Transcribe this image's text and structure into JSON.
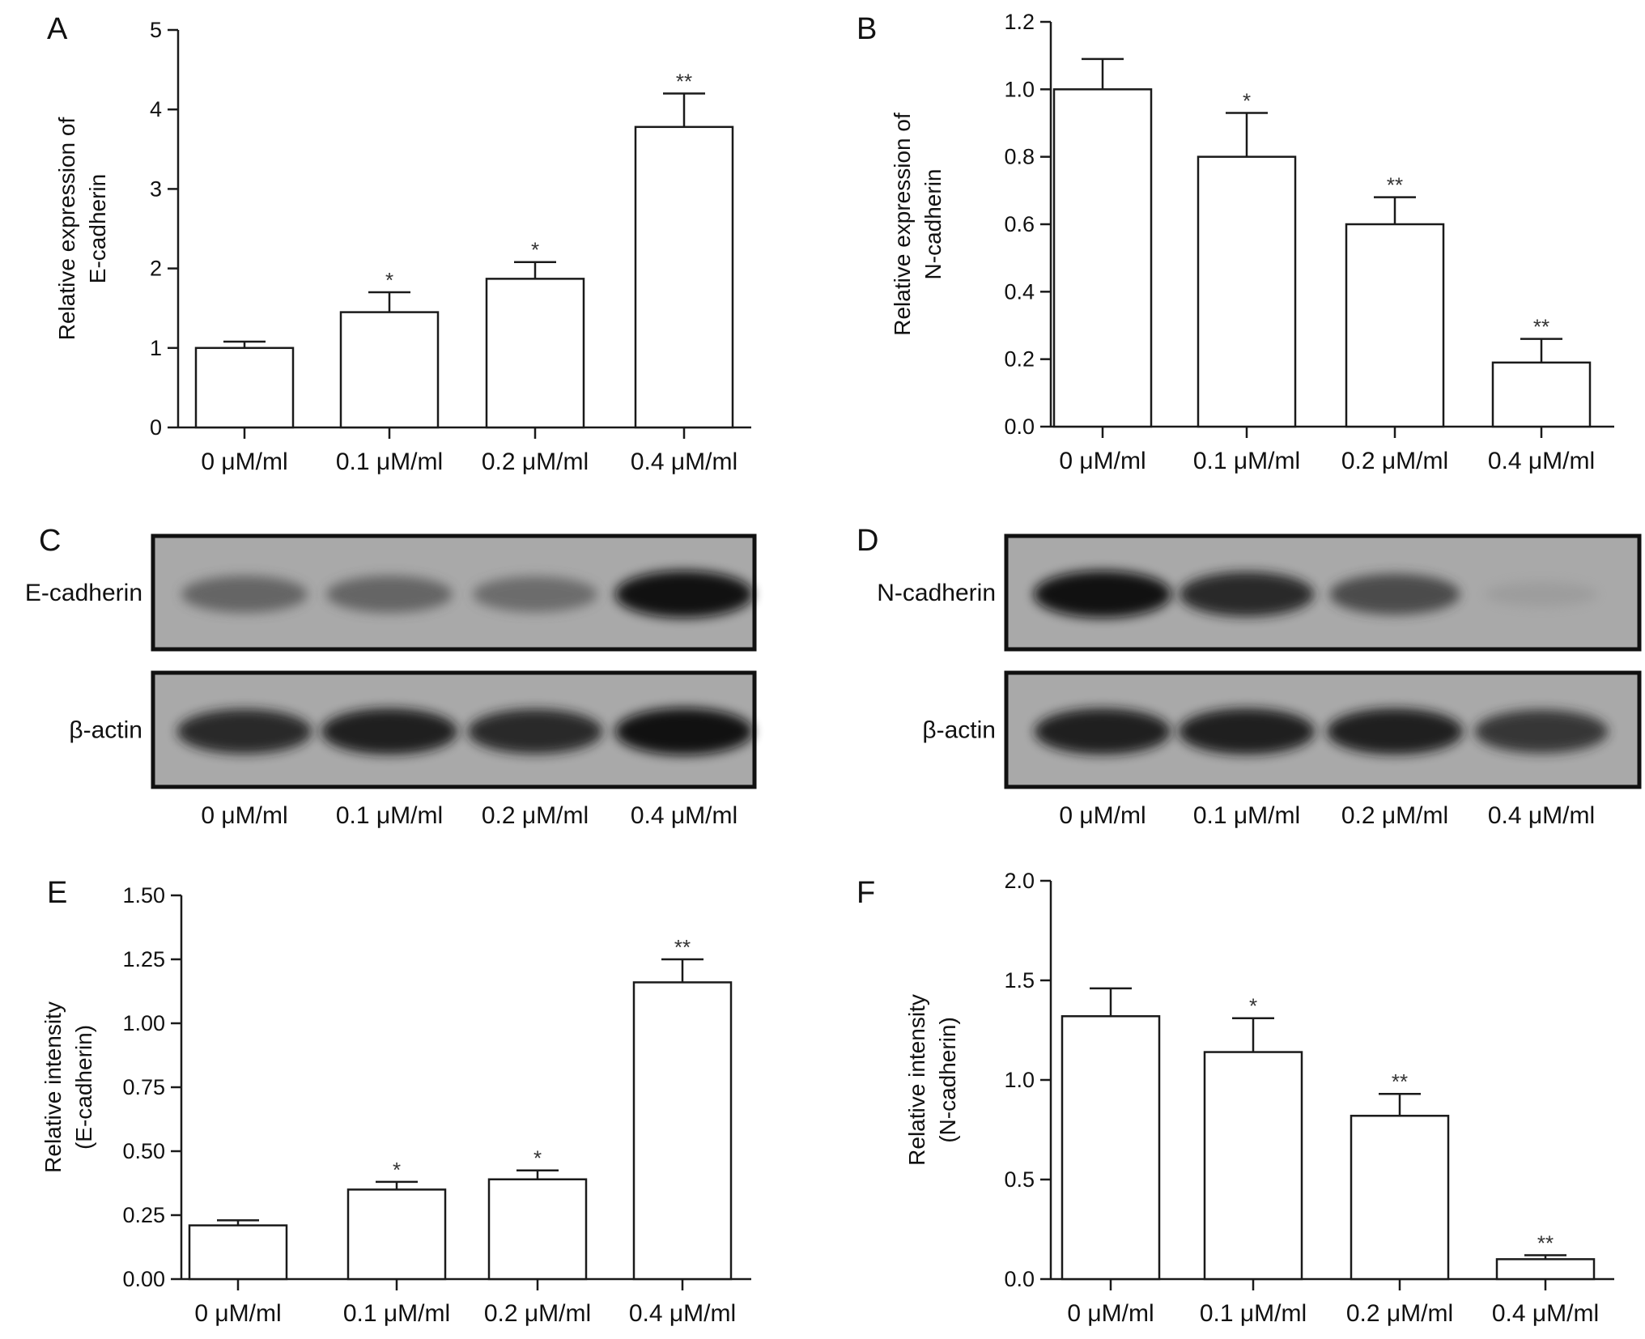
{
  "panels": [
    {
      "id": "A",
      "kind": "chart",
      "letter": "A",
      "chart_data": {
        "type": "bar",
        "categories": [
          "0 μM/ml",
          "0.1 μM/ml",
          "0.2 μM/ml",
          "0.4 μM/ml"
        ],
        "values": [
          1.0,
          1.45,
          1.87,
          3.78
        ],
        "errors": [
          0.08,
          0.25,
          0.21,
          0.42
        ],
        "significance": [
          "",
          "*",
          "*",
          "**"
        ],
        "ylabel": [
          "Relative expression of",
          "E-cadherin"
        ],
        "ylim": [
          0,
          5
        ],
        "yticks": [
          0,
          1,
          2,
          3,
          4,
          5
        ],
        "ytick_labels": [
          "0",
          "1",
          "2",
          "3",
          "4",
          "5"
        ],
        "grid": false
      }
    },
    {
      "id": "B",
      "kind": "chart",
      "letter": "B",
      "chart_data": {
        "type": "bar",
        "categories": [
          "0 μM/ml",
          "0.1 μM/ml",
          "0.2 μM/ml",
          "0.4 μM/ml"
        ],
        "values": [
          1.0,
          0.8,
          0.6,
          0.19
        ],
        "errors": [
          0.09,
          0.13,
          0.08,
          0.07
        ],
        "significance": [
          "",
          "*",
          "**",
          "**"
        ],
        "ylabel": [
          "Relative expression of",
          "N-cadherin"
        ],
        "ylim": [
          0,
          1.2
        ],
        "yticks": [
          0,
          0.2,
          0.4,
          0.6,
          0.8,
          1.0,
          1.2
        ],
        "ytick_labels": [
          "0.0",
          "0.2",
          "0.4",
          "0.6",
          "0.8",
          "1.0",
          "1.2"
        ],
        "grid": false
      }
    },
    {
      "id": "C",
      "kind": "blot",
      "letter": "C",
      "rows": [
        {
          "label": "E-cadherin",
          "band_intensity": [
            0.55,
            0.55,
            0.5,
            0.95
          ]
        },
        {
          "label": "β-actin",
          "band_intensity": [
            0.85,
            0.9,
            0.85,
            0.95
          ]
        }
      ],
      "lanes": [
        "0 μM/ml",
        "0.1 μM/ml",
        "0.2 μM/ml",
        "0.4 μM/ml"
      ]
    },
    {
      "id": "D",
      "kind": "blot",
      "letter": "D",
      "rows": [
        {
          "label": "N-cadherin",
          "band_intensity": [
            0.95,
            0.85,
            0.7,
            0.08
          ]
        },
        {
          "label": "β-actin",
          "band_intensity": [
            0.9,
            0.9,
            0.9,
            0.8
          ]
        }
      ],
      "lanes": [
        "0 μM/ml",
        "0.1 μM/ml",
        "0.2 μM/ml",
        "0.4 μM/ml"
      ]
    },
    {
      "id": "E",
      "kind": "chart",
      "letter": "E",
      "chart_data": {
        "type": "bar",
        "categories": [
          "0 μM/ml",
          "0.1 μM/ml",
          "0.2 μM/ml",
          "0.4 μM/ml"
        ],
        "values": [
          0.21,
          0.35,
          0.39,
          1.16
        ],
        "errors": [
          0.02,
          0.03,
          0.035,
          0.09
        ],
        "significance": [
          "",
          "*",
          "*",
          "**"
        ],
        "ylabel": [
          "Relative intensity",
          "(E-cadherin)"
        ],
        "ylim": [
          0,
          1.5
        ],
        "yticks": [
          0,
          0.25,
          0.5,
          0.75,
          1.0,
          1.25,
          1.5
        ],
        "ytick_labels": [
          "0.00",
          "0.25",
          "0.50",
          "0.75",
          "1.00",
          "1.25",
          "1.50"
        ],
        "grid": false
      }
    },
    {
      "id": "F",
      "kind": "chart",
      "letter": "F",
      "chart_data": {
        "type": "bar",
        "categories": [
          "0 μM/ml",
          "0.1 μM/ml",
          "0.2 μM/ml",
          "0.4 μM/ml"
        ],
        "values": [
          1.32,
          1.14,
          0.82,
          0.1
        ],
        "errors": [
          0.14,
          0.17,
          0.11,
          0.02
        ],
        "significance": [
          "",
          "*",
          "**",
          "**"
        ],
        "ylabel": [
          "Relative intensity",
          "(N-cadherin)"
        ],
        "ylim": [
          0,
          2.0
        ],
        "yticks": [
          0,
          0.5,
          1.0,
          1.5,
          2.0
        ],
        "ytick_labels": [
          "0.0",
          "0.5",
          "1.0",
          "1.5",
          "2.0"
        ],
        "grid": false
      }
    }
  ]
}
